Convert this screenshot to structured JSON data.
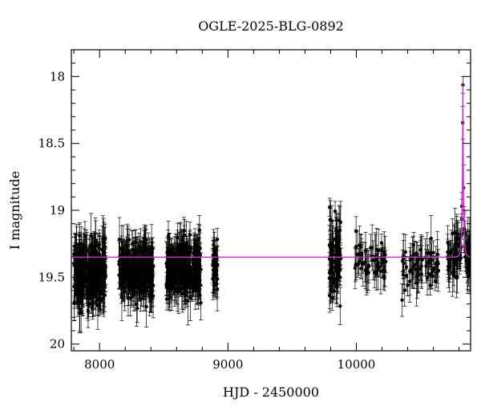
{
  "chart_data": {
    "type": "scatter",
    "title": "OGLE-2025-BLG-0892",
    "xlabel": "HJD - 2450000",
    "ylabel": "I magnitude",
    "xlim": [
      7780,
      10890
    ],
    "ylim": [
      20.05,
      17.8
    ],
    "y_inverted": true,
    "grid": false,
    "x_ticks": [
      8000,
      9000,
      10000
    ],
    "y_ticks": [
      18,
      18.5,
      19,
      19.5,
      20
    ],
    "x_minor_step": 200,
    "y_minor_step": 0.1,
    "colors": {
      "points": "#000000",
      "model": "#cc33cc"
    },
    "series": [
      {
        "kind": "photometry",
        "observing_seasons": [
          {
            "x_range": [
              7800,
              8050
            ],
            "mag_range": [
              19.1,
              19.75
            ],
            "density": 320
          },
          {
            "x_range": [
              8150,
              8420
            ],
            "mag_range": [
              19.1,
              19.7
            ],
            "density": 300
          },
          {
            "x_range": [
              8520,
              8790
            ],
            "mag_range": [
              19.1,
              19.7
            ],
            "density": 300
          },
          {
            "x_range": [
              8880,
              8920
            ],
            "mag_range": [
              19.15,
              19.6
            ],
            "density": 40
          },
          {
            "x_range": [
              9790,
              9880
            ],
            "mag_range": [
              18.85,
              19.75
            ],
            "density": 90
          },
          {
            "x_range": [
              9990,
              10230
            ],
            "mag_range": [
              19.15,
              19.55
            ],
            "density": 60
          },
          {
            "x_range": [
              10350,
              10650
            ],
            "mag_range": [
              19.15,
              19.6
            ],
            "density": 70
          },
          {
            "x_range": [
              10710,
              10890
            ],
            "mag_range": [
              19.1,
              19.55
            ],
            "density": 90
          }
        ],
        "error_bar_typical": 0.12
      },
      {
        "kind": "model",
        "baseline_mag": 19.35,
        "peak_x": 10830,
        "peak_mag": 18.05,
        "tE": 12
      }
    ]
  }
}
